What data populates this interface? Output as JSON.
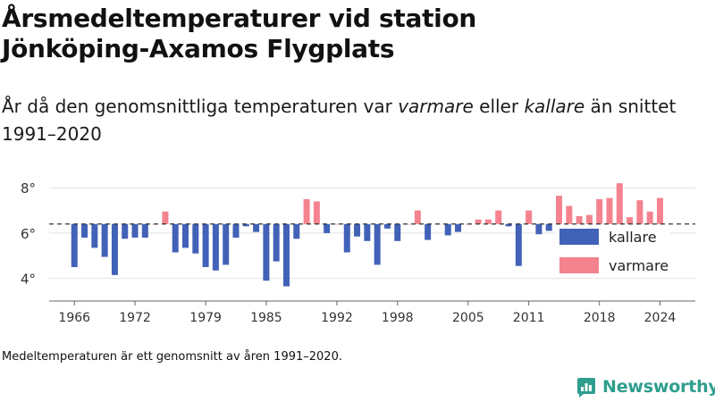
{
  "title": "Årsmedeltemperaturer vid station Jönköping-Axamos Flygplats",
  "subtitle": {
    "part1": "År då den genomsnittliga temperaturen var ",
    "em1": "varmare",
    "part2": " eller ",
    "em2": "kallare",
    "part3": " än snittet 1991–2020"
  },
  "footnote": "Medeltemperaturen är ett genomsnitt av åren 1991–2020.",
  "brand": {
    "name": "Newsworthy",
    "icon": "newsworthy-logo-icon"
  },
  "colors": {
    "warmer": "#f4838f",
    "colder": "#4262b8",
    "reference": "#333333",
    "brand": "#2e9e8e"
  },
  "chart_data": {
    "type": "bar",
    "baseline": 6.4,
    "ylim": [
      3.0,
      8.6
    ],
    "yticks": [
      4,
      6,
      8
    ],
    "ytick_suffix": "°",
    "xticks": [
      1966,
      1972,
      1979,
      1985,
      1992,
      1998,
      2005,
      2011,
      2018,
      2024
    ],
    "xlim": [
      1963.5,
      2027.5
    ],
    "grid": "horizontal",
    "legend": {
      "position": "right",
      "items": [
        {
          "label": "kallare",
          "color": "#4262b8"
        },
        {
          "label": "varmare",
          "color": "#f4838f"
        }
      ]
    },
    "x": [
      1966,
      1967,
      1968,
      1969,
      1970,
      1971,
      1972,
      1973,
      1974,
      1975,
      1976,
      1977,
      1978,
      1979,
      1980,
      1981,
      1982,
      1983,
      1984,
      1985,
      1986,
      1987,
      1988,
      1989,
      1990,
      1991,
      1992,
      1993,
      1994,
      1995,
      1996,
      1997,
      1998,
      1999,
      2000,
      2001,
      2002,
      2003,
      2004,
      2005,
      2006,
      2007,
      2008,
      2009,
      2010,
      2011,
      2012,
      2013,
      2014,
      2015,
      2016,
      2017,
      2018,
      2019,
      2020,
      2021,
      2022,
      2023,
      2024
    ],
    "values": [
      4.5,
      5.8,
      5.35,
      4.95,
      4.15,
      5.75,
      5.8,
      5.8,
      6.4,
      6.95,
      5.15,
      5.35,
      5.1,
      4.5,
      4.35,
      4.6,
      5.8,
      6.3,
      6.05,
      3.9,
      4.75,
      3.65,
      5.75,
      7.5,
      7.4,
      6.0,
      6.4,
      5.15,
      5.85,
      5.65,
      4.6,
      6.2,
      5.65,
      6.4,
      7.0,
      5.7,
      6.4,
      5.9,
      6.05,
      6.4,
      6.6,
      6.6,
      7.0,
      6.3,
      4.55,
      7.0,
      5.95,
      6.1,
      7.65,
      7.2,
      6.75,
      6.8,
      7.5,
      7.55,
      8.2,
      6.7,
      7.45,
      6.95,
      7.55
    ]
  }
}
